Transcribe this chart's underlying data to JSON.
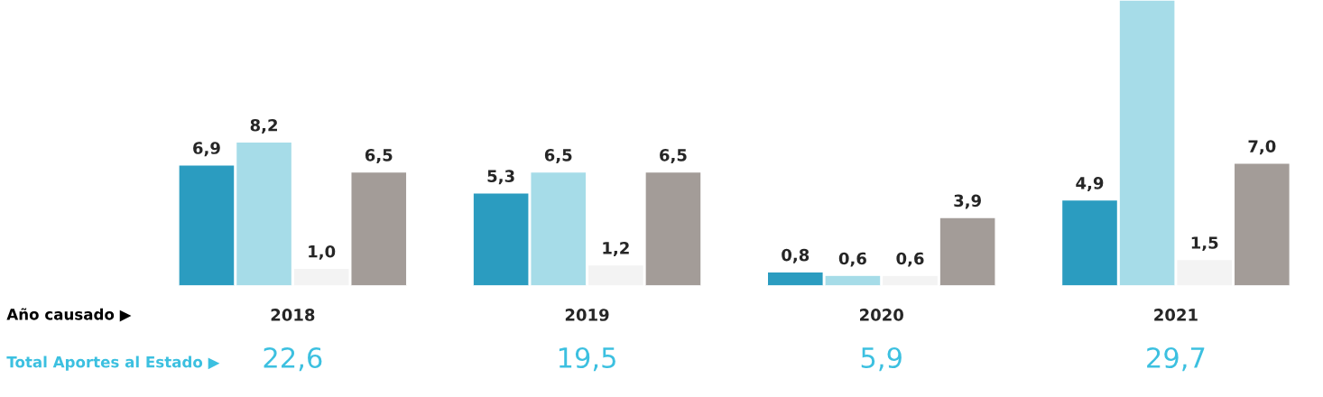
{
  "chart_data": {
    "type": "bar",
    "categories": [
      "2018",
      "2019",
      "2020",
      "2021"
    ],
    "series": [
      {
        "color": "#2b9cc0",
        "values": [
          6.9,
          5.3,
          0.8,
          4.9
        ],
        "value_labels": [
          "6,9",
          "5,3",
          "0,8",
          "4,9"
        ]
      },
      {
        "color": "#a6dce8",
        "values": [
          8.2,
          6.5,
          0.6,
          16.3
        ],
        "value_labels": [
          "8,2",
          "6,5",
          "0,6",
          null
        ]
      },
      {
        "color": "#f3f3f3",
        "values": [
          1.0,
          1.2,
          0.6,
          1.5
        ],
        "value_labels": [
          "1,0",
          "1,2",
          "0,6",
          "1,5"
        ]
      },
      {
        "color": "#a39c98",
        "values": [
          6.5,
          6.5,
          3.9,
          7.0
        ],
        "value_labels": [
          "6,5",
          "6,5",
          "3,9",
          "7,0"
        ]
      }
    ],
    "totals": [
      "22,6",
      "19,5",
      "5,9",
      "29,7"
    ],
    "annotations": [
      "Año causado ▶",
      "Total Aportes al Estado ▶"
    ],
    "grid": false
  }
}
